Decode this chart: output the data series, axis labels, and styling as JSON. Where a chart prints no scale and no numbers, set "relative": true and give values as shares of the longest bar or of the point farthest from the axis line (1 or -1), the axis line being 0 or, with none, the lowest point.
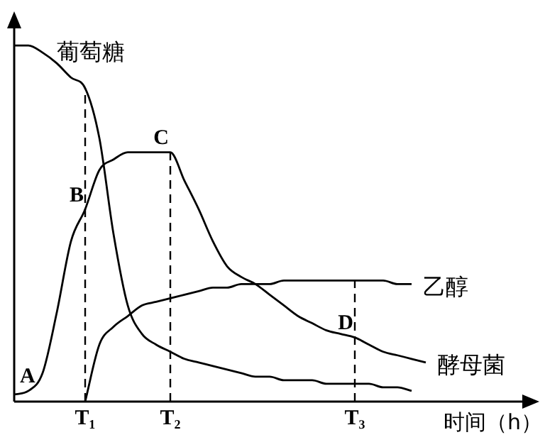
{
  "chart_data": {
    "type": "line",
    "relative": true,
    "xlabel": "时间（h）",
    "categories": [
      null,
      null,
      null,
      null,
      null,
      "T₁",
      null,
      null,
      null,
      null,
      null,
      "T₂",
      null,
      null,
      null,
      null,
      null,
      null,
      null,
      null,
      null,
      null,
      null,
      null,
      "T₃",
      null,
      null,
      null,
      null,
      null,
      null,
      null,
      null,
      null,
      null,
      null,
      null
    ],
    "series": [
      {
        "name": "葡萄糖",
        "color": "#000000",
        "values": [
          1.0,
          1.0,
          0.98,
          0.95,
          0.91,
          0.88,
          0.74,
          0.47,
          0.27,
          0.19,
          0.16,
          0.14,
          0.12,
          0.11,
          0.1,
          0.09,
          0.08,
          0.07,
          0.07,
          0.06,
          0.06,
          0.06,
          0.05,
          0.05,
          0.05,
          0.05,
          0.04,
          0.04,
          0.03,
          null,
          null,
          null,
          null,
          null,
          null,
          null,
          null
        ]
      },
      {
        "name": "酵母菌",
        "color": "#000000",
        "values": [
          0.02,
          0.03,
          0.08,
          0.25,
          0.45,
          0.54,
          0.65,
          0.68,
          0.7,
          0.7,
          0.7,
          0.7,
          0.62,
          0.54,
          0.45,
          0.38,
          0.35,
          0.33,
          0.3,
          0.27,
          0.24,
          0.22,
          0.2,
          0.19,
          0.18,
          0.16,
          0.14,
          0.13,
          0.12,
          0.11,
          null,
          null,
          null,
          null,
          null,
          null,
          null
        ]
      },
      {
        "name": "乙醇",
        "color": "#000000",
        "values": [
          null,
          null,
          null,
          null,
          null,
          0,
          0.16,
          0.21,
          0.24,
          0.27,
          0.28,
          0.29,
          0.3,
          0.31,
          0.32,
          0.32,
          0.33,
          0.33,
          0.33,
          0.34,
          0.34,
          0.34,
          0.34,
          0.34,
          0.34,
          0.34,
          0.34,
          0.33,
          0.33,
          null,
          null,
          null,
          null,
          null,
          null,
          null,
          null
        ]
      }
    ],
    "ref_lines": [
      {
        "axis": "x",
        "value": "T₁",
        "line_style": "dashed"
      },
      {
        "axis": "x",
        "value": "T₂",
        "line_style": "dashed"
      },
      {
        "axis": "x",
        "value": "T₃",
        "line_style": "dashed"
      }
    ],
    "annotations": [
      "A",
      {
        "text": "B",
        "x": "T₁",
        "y": 0.54
      },
      {
        "text": "C",
        "x": "T₂",
        "y": 0.7
      },
      {
        "text": "D",
        "x": "T₃",
        "y": 0.18
      }
    ],
    "grid": false,
    "legend": false,
    "marker": "none",
    "line_style": "solid"
  }
}
